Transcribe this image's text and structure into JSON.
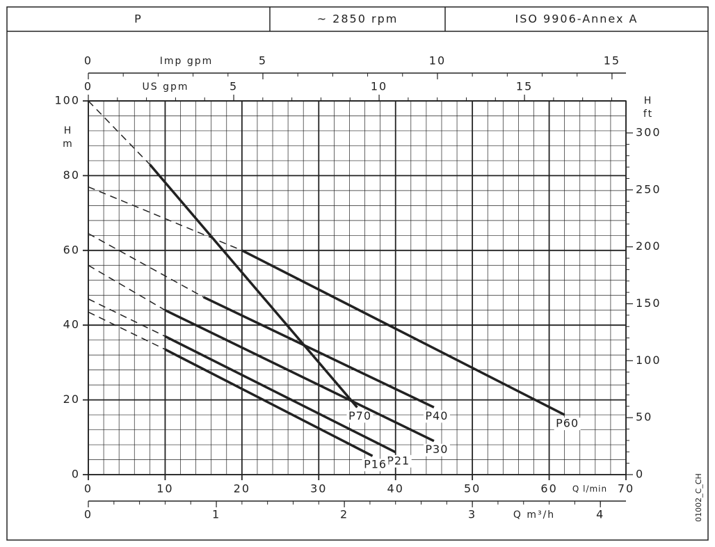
{
  "header": [
    "P",
    "~ 2850 rpm",
    "ISO 9906-Annex A"
  ],
  "code": "01002_C_CH",
  "chart_data": {
    "type": "line",
    "xlabel": "Q l/min",
    "ylabel": [
      "H",
      "m"
    ],
    "y2label": [
      "H",
      "ft"
    ],
    "xlim": [
      0,
      70
    ],
    "xticks": [
      0,
      10,
      20,
      30,
      40,
      50,
      60,
      70
    ],
    "ylim": [
      0,
      100
    ],
    "yticks": [
      0,
      20,
      40,
      60,
      80,
      100
    ],
    "y2lim": [
      0,
      328.1
    ],
    "y2ticks": [
      0,
      50,
      100,
      150,
      200,
      250,
      300
    ],
    "grid": true,
    "secondary_x_axes": [
      {
        "label": "Imp gpm",
        "lim": [
          0,
          15.4
        ],
        "ticks": [
          0,
          5,
          10,
          15
        ]
      },
      {
        "label": "US gpm",
        "lim": [
          0,
          18.49
        ],
        "ticks": [
          0,
          5,
          10,
          15
        ]
      },
      {
        "label": "Q m³/h",
        "lim": [
          0,
          4.2
        ],
        "ticks": [
          0,
          1,
          2,
          3,
          4
        ]
      }
    ],
    "series": [
      {
        "name": "P70",
        "color": "#222222",
        "x": [
          0,
          8,
          35
        ],
        "values": [
          100,
          83,
          18
        ]
      },
      {
        "name": "P60",
        "color": "#222222",
        "x": [
          0,
          20,
          62
        ],
        "values": [
          77,
          60,
          16
        ]
      },
      {
        "name": "P40",
        "color": "#222222",
        "x": [
          0,
          15,
          45
        ],
        "values": [
          64.5,
          47.5,
          18
        ]
      },
      {
        "name": "P30",
        "color": "#222222",
        "x": [
          0,
          10,
          13,
          45
        ],
        "values": [
          56,
          44,
          41,
          9
        ]
      },
      {
        "name": "P21",
        "color": "#222222",
        "x": [
          0,
          10,
          40
        ],
        "values": [
          47,
          37,
          6
        ]
      },
      {
        "name": "P16",
        "color": "#222222",
        "x": [
          0,
          10,
          37
        ],
        "values": [
          43.5,
          33.5,
          5
        ]
      }
    ]
  }
}
